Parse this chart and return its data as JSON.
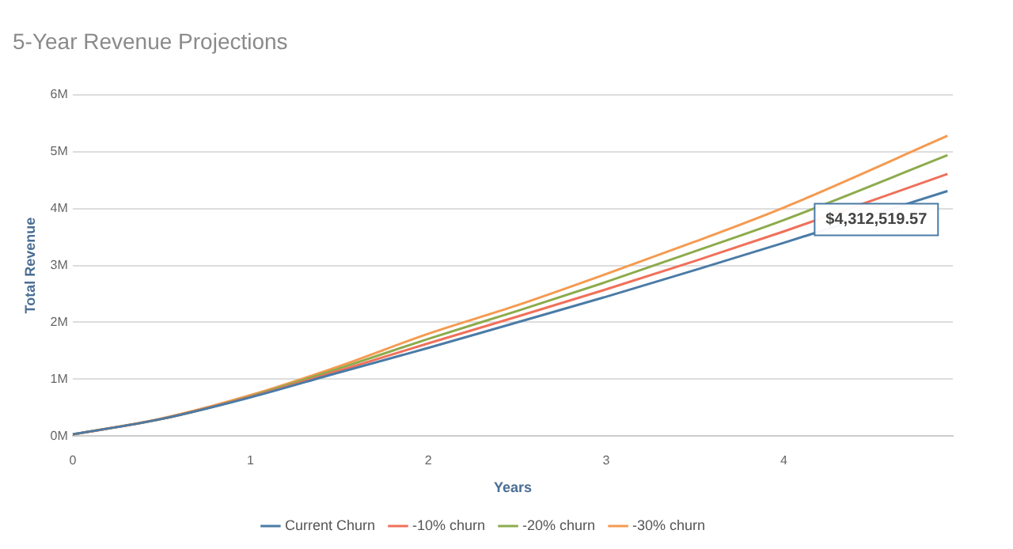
{
  "chart_data": {
    "type": "line",
    "title": "5-Year Revenue Projections",
    "xlabel": "Years",
    "ylabel": "Total Revenue",
    "x": [
      0,
      0.5,
      1,
      1.5,
      2,
      2.5,
      3,
      3.5,
      4,
      4.92
    ],
    "xlim": [
      0,
      4.95
    ],
    "xticks": [
      0,
      1,
      2,
      3,
      4
    ],
    "ylim": [
      0,
      6000000
    ],
    "yticks": [
      {
        "value": 0,
        "label": "0M"
      },
      {
        "value": 1000000,
        "label": "1M"
      },
      {
        "value": 2000000,
        "label": "2M"
      },
      {
        "value": 3000000,
        "label": "3M"
      },
      {
        "value": 4000000,
        "label": "4M"
      },
      {
        "value": 5000000,
        "label": "5M"
      },
      {
        "value": 6000000,
        "label": "6M"
      }
    ],
    "series": [
      {
        "name": "Current Churn",
        "color": "#4a7ba6",
        "values": [
          30000,
          300000,
          680000,
          1120000,
          1550000,
          2000000,
          2450000,
          2920000,
          3400000,
          4310000
        ]
      },
      {
        "name": "-10% churn",
        "color": "#f0705a",
        "values": [
          30000,
          300000,
          690000,
          1150000,
          1630000,
          2100000,
          2580000,
          3080000,
          3600000,
          4610000
        ]
      },
      {
        "name": "-20% churn",
        "color": "#8cab4c",
        "values": [
          30000,
          300000,
          700000,
          1190000,
          1710000,
          2200000,
          2710000,
          3250000,
          3800000,
          4940000
        ]
      },
      {
        "name": "-30% churn",
        "color": "#f59a50",
        "values": [
          30000,
          310000,
          720000,
          1230000,
          1800000,
          2300000,
          2850000,
          3420000,
          4020000,
          5280000
        ]
      }
    ],
    "annotations": [
      {
        "text": "$4,312,519.57",
        "x": 4.92,
        "y": 4310000
      }
    ],
    "grid": "y",
    "legend": "bottom",
    "marker": "none",
    "line_style": "solid"
  }
}
